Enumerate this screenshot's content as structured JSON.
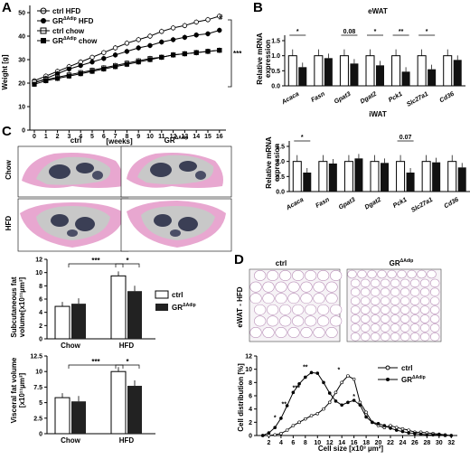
{
  "panels": {
    "A": {
      "letter": "A",
      "ylabel": "Weight [g]",
      "xlabel": "[weeks]",
      "yticks": [
        "0",
        "10",
        "20",
        "30",
        "40",
        "50"
      ],
      "xticks": [
        "0",
        "1",
        "2",
        "3",
        "4",
        "5",
        "6",
        "7",
        "8",
        "9",
        "10",
        "11",
        "12",
        "13",
        "14",
        "15",
        "16"
      ],
      "legend": [
        {
          "label": "ctrl HFD",
          "marker": "open-circle"
        },
        {
          "label": "GR",
          "sup": "ΔAdip",
          "suffix": " HFD",
          "marker": "filled-circle"
        },
        {
          "label": "ctrl chow",
          "marker": "open-square"
        },
        {
          "label": "GR",
          "sup": "ΔAdip",
          "suffix": " chow",
          "marker": "filled-square"
        }
      ],
      "hash": "#",
      "sig": "***"
    },
    "B": {
      "letter": "B",
      "ylabel1": "Relative mRNA",
      "ylabel2": "expression",
      "yticks": [
        "0.0",
        "0.5",
        "1.0",
        "1.5"
      ],
      "genes": [
        "Acaca",
        "Fasn",
        "Gpat3",
        "Dgat2",
        "Pck1",
        "Slc27a1",
        "Cd36"
      ],
      "top_title": "eWAT",
      "bottom_title": "iWAT",
      "top_annotations": [
        "*",
        "",
        "0.08",
        "*",
        "**",
        "*",
        ""
      ],
      "bottom_annotations": [
        "*",
        "",
        "",
        "",
        "0.07",
        "",
        ""
      ]
    },
    "C": {
      "letter": "C",
      "col1": "ctrl",
      "col2": "GR",
      "col2_sup": "ΔAdip",
      "row1": "Chow",
      "row2": "HFD",
      "sub_ylabel1": "Subcutaneous fat",
      "sub_ylabel2": "volume[x10¹¹µm³]",
      "sub_yticks": [
        "0",
        "2",
        "4",
        "6",
        "8",
        "10",
        "12"
      ],
      "vis_ylabel1": "Visceral fat volume",
      "vis_ylabel2": "[x10¹¹µm³]",
      "vis_yticks": [
        "0",
        "2.5",
        "5",
        "7.5",
        "10",
        "12.5"
      ],
      "groups": [
        "Chow",
        "HFD"
      ],
      "legend": [
        "ctrl",
        "GR"
      ],
      "legend_sup": "ΔAdip",
      "sig1": "***",
      "sig2": "*"
    },
    "D": {
      "letter": "D",
      "img1_title": "ctrl",
      "img2_title": "GR",
      "img2_sup": "ΔAdip",
      "side_label": "eWAT - HFD",
      "ylabel": "Cell distribution [%]",
      "xlabel": "Cell size [x10³ µm²]",
      "yticks": [
        "0",
        "2",
        "4",
        "6",
        "8",
        "10",
        "12"
      ],
      "xticks": [
        "2",
        "4",
        "6",
        "8",
        "10",
        "12",
        "14",
        "16",
        "18",
        "20",
        "22",
        "24",
        "26",
        "28",
        "30",
        "32"
      ],
      "legend": [
        "ctrl",
        "GR"
      ],
      "legend_sup": "ΔAdip",
      "stars": [
        "*",
        "**",
        "***",
        "**",
        "*",
        "*"
      ]
    }
  },
  "chart_data": [
    {
      "type": "line",
      "xlabel": "[weeks]",
      "ylabel": "Weight [g]",
      "ylim": [
        0,
        50
      ],
      "x": [
        0,
        1,
        2,
        3,
        4,
        5,
        6,
        7,
        8,
        9,
        10,
        11,
        12,
        13,
        14,
        15,
        16
      ],
      "series": [
        {
          "name": "ctrl HFD",
          "values": [
            21,
            23,
            25,
            27,
            29,
            31,
            33,
            35,
            37,
            38.5,
            40,
            42,
            43.5,
            44.5,
            46,
            47,
            48.5
          ]
        },
        {
          "name": "GRΔAdip HFD",
          "values": [
            20,
            22,
            24,
            26,
            27.5,
            29,
            30.5,
            32,
            33.5,
            35,
            36,
            37.5,
            38.5,
            39.5,
            40.5,
            41,
            42.5
          ]
        },
        {
          "name": "ctrl chow",
          "values": [
            20.5,
            21.5,
            22.5,
            23.5,
            24.5,
            25.5,
            26.5,
            27.5,
            28.5,
            29.5,
            30.5,
            31,
            32,
            32.5,
            33,
            33.5,
            34
          ]
        },
        {
          "name": "GRΔAdip chow",
          "values": [
            19.5,
            21,
            22,
            23,
            24,
            25,
            26,
            27,
            28,
            29,
            30,
            31,
            32,
            32.5,
            33,
            33.5,
            34
          ]
        }
      ]
    },
    {
      "type": "bar",
      "title": "eWAT",
      "ylabel": "Relative mRNA expression",
      "ylim": [
        0,
        1.5
      ],
      "categories": [
        "Acaca",
        "Fasn",
        "Gpat3",
        "Dgat2",
        "Pck1",
        "Slc27a1",
        "Cd36"
      ],
      "series": [
        {
          "name": "ctrl",
          "values": [
            1.0,
            1.0,
            1.0,
            1.0,
            1.0,
            1.0,
            1.0
          ]
        },
        {
          "name": "GRΔAdip",
          "values": [
            0.62,
            0.92,
            0.74,
            0.68,
            0.47,
            0.55,
            0.86
          ]
        }
      ]
    },
    {
      "type": "bar",
      "title": "iWAT",
      "ylabel": "Relative mRNA expression",
      "ylim": [
        0,
        1.5
      ],
      "categories": [
        "Acaca",
        "Fasn",
        "Gpat3",
        "Dgat2",
        "Pck1",
        "Slc27a1",
        "Cd36"
      ],
      "series": [
        {
          "name": "ctrl",
          "values": [
            1.0,
            1.0,
            1.0,
            1.0,
            1.0,
            1.0,
            1.0
          ]
        },
        {
          "name": "GRΔAdip",
          "values": [
            0.63,
            0.93,
            1.1,
            0.95,
            0.63,
            0.97,
            0.8
          ]
        }
      ]
    },
    {
      "type": "bar",
      "ylabel": "Subcutaneous fat volume[x10¹¹µm³]",
      "ylim": [
        0,
        12
      ],
      "categories": [
        "Chow",
        "HFD"
      ],
      "series": [
        {
          "name": "ctrl",
          "values": [
            4.9,
            9.5
          ]
        },
        {
          "name": "GRΔAdip",
          "values": [
            5.3,
            7.2
          ]
        }
      ]
    },
    {
      "type": "bar",
      "ylabel": "Visceral fat volume [x10¹¹µm³]",
      "ylim": [
        0,
        12.5
      ],
      "categories": [
        "Chow",
        "HFD"
      ],
      "series": [
        {
          "name": "ctrl",
          "values": [
            5.8,
            10.0
          ]
        },
        {
          "name": "GRΔAdip",
          "values": [
            5.2,
            7.7
          ]
        }
      ]
    },
    {
      "type": "line",
      "xlabel": "Cell size [x10³ µm²]",
      "ylabel": "Cell distribution [%]",
      "ylim": [
        0,
        12
      ],
      "x": [
        1,
        2,
        3,
        4,
        5,
        6,
        7,
        8,
        9,
        10,
        11,
        12,
        13,
        14,
        15,
        16,
        17,
        18,
        19,
        20,
        21,
        22,
        23,
        24,
        25,
        26,
        27,
        28,
        29,
        30,
        31,
        32
      ],
      "series": [
        {
          "name": "ctrl",
          "values": [
            0,
            0,
            0.1,
            0.3,
            0.8,
            1.5,
            2,
            2.5,
            3,
            3.3,
            4,
            5,
            6.5,
            8,
            9,
            8.5,
            5,
            3.5,
            2,
            1.5,
            1.2,
            1.5,
            1.2,
            1,
            0.8,
            0.5,
            0.5,
            0.4,
            0.3,
            0.2,
            0.1,
            0
          ]
        },
        {
          "name": "GRΔAdip",
          "values": [
            0,
            0.4,
            1.2,
            2.6,
            4.5,
            6.5,
            7.8,
            8.8,
            9.5,
            9.4,
            8,
            6.4,
            5.2,
            4.6,
            5,
            5.3,
            4.6,
            2.8,
            2,
            1.8,
            1.5,
            1.1,
            0.8,
            0.6,
            0.4,
            0.3,
            0.2,
            0.1,
            0.1,
            0.1,
            0,
            0
          ]
        }
      ]
    }
  ]
}
